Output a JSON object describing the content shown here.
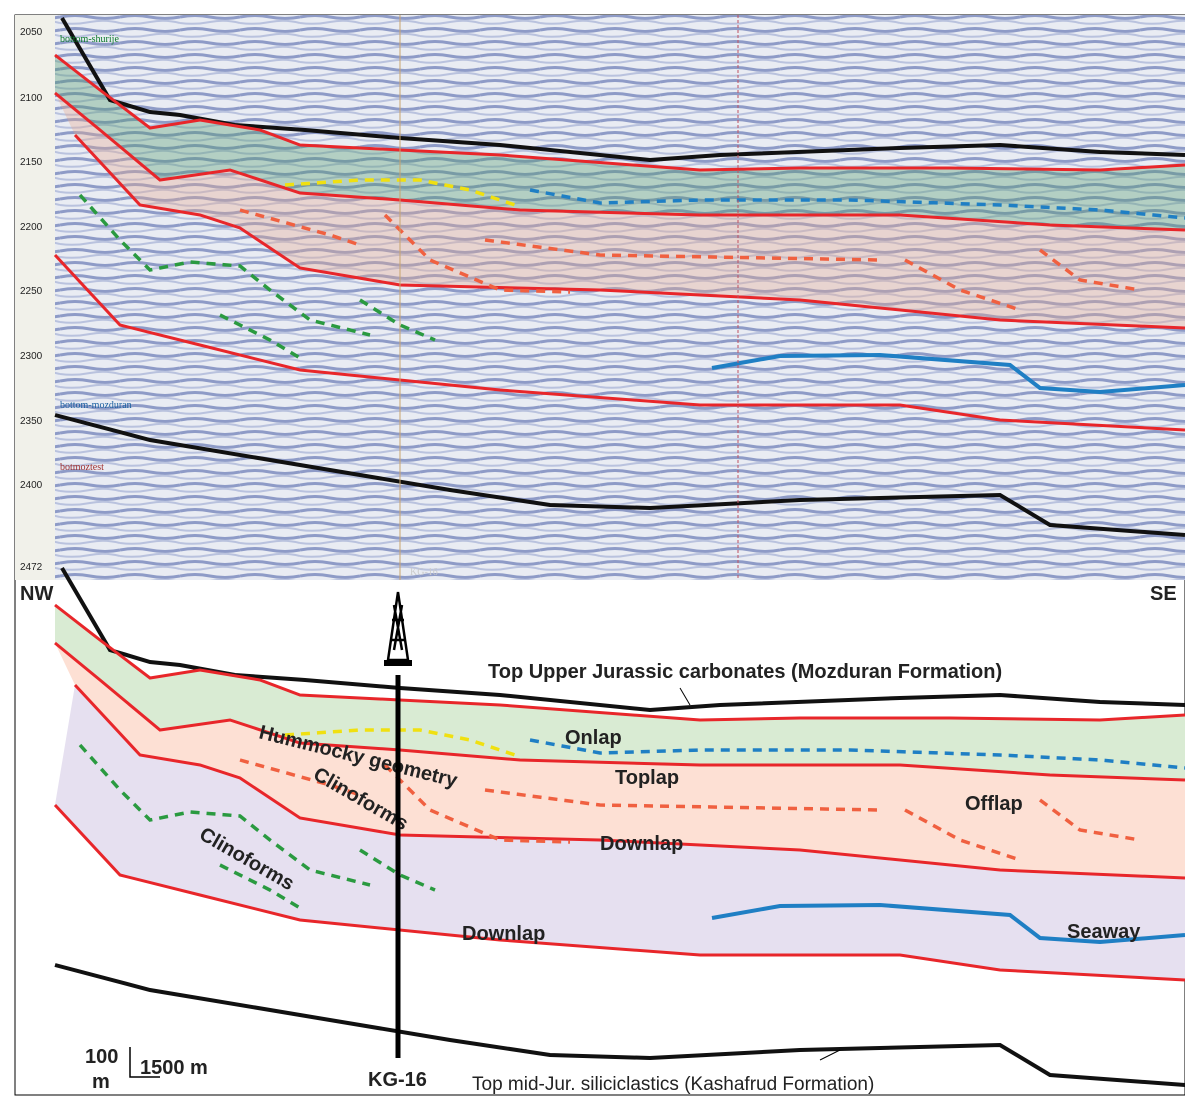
{
  "seismic_section": {
    "depth_labels": [
      2050,
      2100,
      2150,
      2200,
      2250,
      2300,
      2350,
      2400,
      2472
    ],
    "horizon_labels": [
      "bottom-shurije",
      "bottom-mozduran",
      "botmoztest"
    ],
    "well_label": "KG-16"
  },
  "interpretation": {
    "left_direction": "NW",
    "right_direction": "SE",
    "top_horizon": "Top Upper Jurassic carbonates (Mozduran Formation)",
    "bottom_horizon": "Top mid-Jur. siliciclastics (Kashafrud Formation)",
    "annotations": [
      "Hummocky geometry",
      "Onlap",
      "Toplap",
      "Clinoforms",
      "Offlap",
      "Downlap",
      "Clinoforms",
      "Downlap",
      "Seaway"
    ],
    "well_label": "KG-16",
    "scale_vertical_value": "100",
    "scale_vertical_unit": "m",
    "scale_horizontal": "1500 m"
  }
}
